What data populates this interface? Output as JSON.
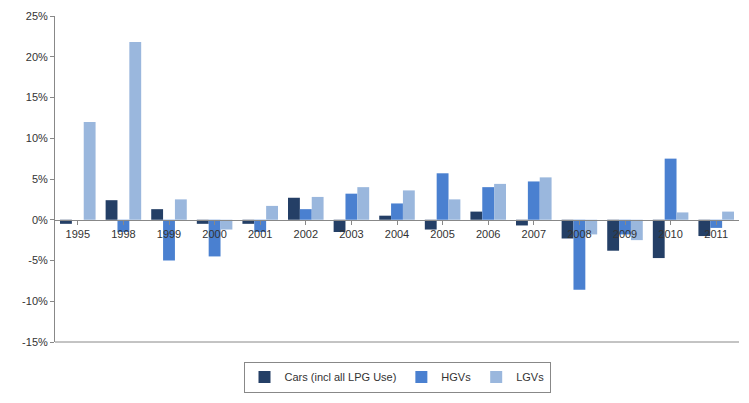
{
  "chart_data": {
    "type": "bar",
    "categories": [
      "1995",
      "1998",
      "1999",
      "2000",
      "2001",
      "2002",
      "2003",
      "2004",
      "2005",
      "2006",
      "2007",
      "2008",
      "2009",
      "2010",
      "2011"
    ],
    "series": [
      {
        "name": "Cars (incl all LPG Use)",
        "color": "#243F66",
        "values": [
          -0.5,
          2.4,
          1.3,
          -0.5,
          -0.5,
          2.7,
          -1.5,
          0.5,
          -1.2,
          1.0,
          -0.7,
          -2.3,
          -3.8,
          -4.7,
          -2.0
        ]
      },
      {
        "name": "HGVs",
        "color": "#4A80D0",
        "values": [
          0,
          -1.5,
          -5.0,
          -4.5,
          -1.5,
          1.3,
          3.2,
          2.0,
          5.7,
          4.0,
          4.7,
          -8.6,
          -1.8,
          7.5,
          -1.0
        ]
      },
      {
        "name": "LGVs",
        "color": "#9AB7DD",
        "values": [
          12.0,
          21.8,
          2.5,
          -1.2,
          1.7,
          2.8,
          4.0,
          3.6,
          2.5,
          4.4,
          5.2,
          -1.8,
          -2.5,
          0.9,
          1.0
        ]
      }
    ],
    "ylim": [
      -15,
      25
    ],
    "yticks": [
      {
        "value": -15,
        "label": "-15%"
      },
      {
        "value": -10,
        "label": "-10%"
      },
      {
        "value": -5,
        "label": "-5%"
      },
      {
        "value": 0,
        "label": "0%"
      },
      {
        "value": 5,
        "label": "5%"
      },
      {
        "value": 10,
        "label": "10%"
      },
      {
        "value": 15,
        "label": "15%"
      },
      {
        "value": 20,
        "label": "20%"
      },
      {
        "value": 25,
        "label": "25%"
      }
    ],
    "grid": false,
    "legend": "bottom"
  }
}
